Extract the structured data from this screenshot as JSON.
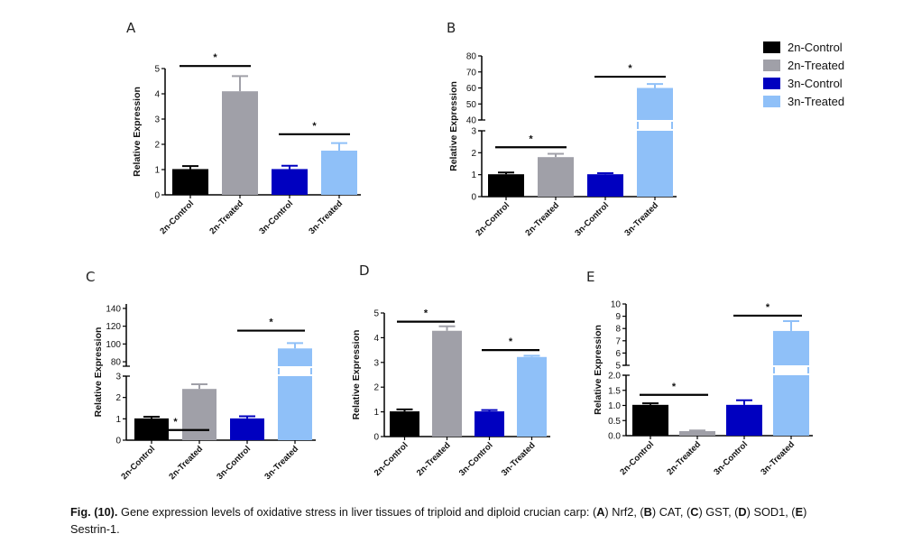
{
  "figure": {
    "legend": {
      "position": "top-right",
      "entries": [
        {
          "label": "2n-Control",
          "color": "#000000"
        },
        {
          "label": "2n-Treated",
          "color": "#a0a0a8"
        },
        {
          "label": "3n-Control",
          "color": "#0000c0"
        },
        {
          "label": "3n-Treated",
          "color": "#8fc0f8"
        }
      ]
    },
    "caption": {
      "fig_label": "Fig. (10).",
      "text_1": " Gene expression levels of oxidative stress in liver tissues of triploid and diploid crucian carp: (",
      "a": "A",
      "text_2": ") Nrf2, (",
      "b": "B",
      "text_3": ") CAT, (",
      "c": "C",
      "text_4": ") GST, (",
      "d": "D",
      "text_5": ") SOD1, (",
      "e": "E",
      "text_6": ") Sestrin-1."
    }
  },
  "chart_data": [
    {
      "panel": "A",
      "gene": "Nrf2",
      "type": "bar",
      "categories": [
        "2n-Control",
        "2n-Treated",
        "3n-Control",
        "3n-Treated"
      ],
      "values": [
        1.02,
        4.1,
        1.02,
        1.75
      ],
      "errors": [
        0.12,
        0.6,
        0.13,
        0.3
      ],
      "ylabel": "Relative Expression",
      "ylim": [
        0,
        5
      ],
      "yticks": [
        0,
        1,
        2,
        3,
        4,
        5
      ],
      "axis_break": null,
      "significance": [
        {
          "from": 0,
          "to": 1,
          "label": "*",
          "level": 5.1
        },
        {
          "from": 2,
          "to": 3,
          "label": "*",
          "level": 2.4
        }
      ]
    },
    {
      "panel": "B",
      "gene": "CAT",
      "type": "bar",
      "categories": [
        "2n-Control",
        "2n-Treated",
        "3n-Control",
        "3n-Treated"
      ],
      "values": [
        1.02,
        1.8,
        1.02,
        60
      ],
      "errors": [
        0.08,
        0.15,
        0.05,
        2.5
      ],
      "ylabel": "Relative Expression",
      "lower": {
        "ylim": [
          0,
          3
        ],
        "yticks": [
          0,
          1,
          2,
          3
        ]
      },
      "upper": {
        "ylim": [
          40,
          80
        ],
        "yticks": [
          40,
          50,
          60,
          70,
          80
        ]
      },
      "significance": [
        {
          "from": 0,
          "to": 1,
          "label": "*",
          "segment": "lower",
          "level": 2.25
        },
        {
          "from": 2,
          "to": 3,
          "label": "*",
          "segment": "upper",
          "level": 67
        }
      ]
    },
    {
      "panel": "C",
      "gene": "GST",
      "type": "bar",
      "categories": [
        "2n-Control",
        "2n-Treated",
        "3n-Control",
        "3n-Treated"
      ],
      "values": [
        1.02,
        2.4,
        1.02,
        95
      ],
      "errors": [
        0.08,
        0.22,
        0.1,
        6
      ],
      "ylabel": "Relative Expression",
      "lower": {
        "ylim": [
          0,
          3
        ],
        "yticks": [
          0,
          1,
          2,
          3
        ]
      },
      "upper": {
        "ylim": [
          75,
          145
        ],
        "yticks": [
          80,
          100,
          120,
          140
        ]
      },
      "significance": [
        {
          "from": 0,
          "to": 1,
          "label": "*",
          "segment": "lower",
          "level": 3.2
        },
        {
          "from": 2,
          "to": 3,
          "label": "*",
          "segment": "upper",
          "level": 115
        }
      ]
    },
    {
      "panel": "D",
      "gene": "SOD1",
      "type": "bar",
      "categories": [
        "2n-Control",
        "2n-Treated",
        "3n-Control",
        "3n-Treated"
      ],
      "values": [
        1.02,
        4.28,
        1.02,
        3.22
      ],
      "errors": [
        0.08,
        0.18,
        0.05,
        0.05
      ],
      "ylabel": "Relative Expression",
      "ylim": [
        0,
        5
      ],
      "yticks": [
        0,
        1,
        2,
        3,
        4,
        5
      ],
      "axis_break": null,
      "significance": [
        {
          "from": 0,
          "to": 1,
          "label": "*",
          "level": 4.65
        },
        {
          "from": 2,
          "to": 3,
          "label": "*",
          "level": 3.5
        }
      ]
    },
    {
      "panel": "E",
      "gene": "Sestrin-1",
      "type": "bar",
      "categories": [
        "2n-Control",
        "2n-Treated",
        "3n-Control",
        "3n-Treated"
      ],
      "values": [
        1.02,
        0.15,
        1.02,
        7.8
      ],
      "errors": [
        0.05,
        0.02,
        0.15,
        0.8
      ],
      "ylabel": "Relative Expression",
      "lower": {
        "ylim": [
          0,
          2
        ],
        "yticks": [
          0.0,
          0.5,
          1.0,
          1.5,
          2.0
        ],
        "tick_format": 1
      },
      "upper": {
        "ylim": [
          5,
          10
        ],
        "yticks": [
          5,
          6,
          7,
          8,
          9,
          10
        ]
      },
      "significance": [
        {
          "from": 0,
          "to": 1,
          "label": "*",
          "segment": "lower",
          "level": 1.35
        },
        {
          "from": 2,
          "to": 3,
          "label": "*",
          "segment": "upper",
          "level": 9.05
        }
      ]
    }
  ]
}
